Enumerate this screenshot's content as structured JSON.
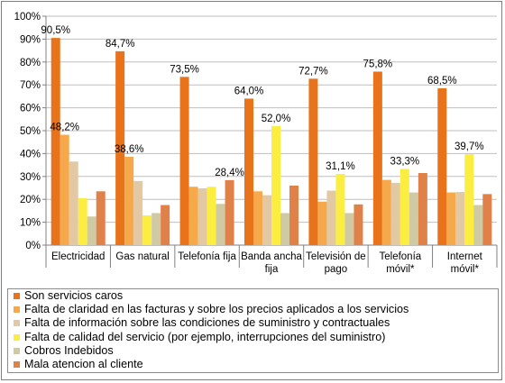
{
  "chart_data": {
    "type": "bar",
    "categories": [
      [
        "Electricidad"
      ],
      [
        "Gas natural"
      ],
      [
        "Telefonía fija"
      ],
      [
        "Banda ancha",
        "fija"
      ],
      [
        "Televisión de",
        "pago"
      ],
      [
        "Telefonía",
        "móvil*"
      ],
      [
        "Internet",
        "móvil*"
      ]
    ],
    "yticks": [
      "0%",
      "10%",
      "20%",
      "30%",
      "40%",
      "50%",
      "60%",
      "70%",
      "80%",
      "90%",
      "100%"
    ],
    "ylim": [
      0,
      100
    ],
    "grid": true,
    "legend_position": "bottom",
    "series": [
      {
        "name": "Son servicios caros",
        "color": "#e8731a",
        "values": [
          90.5,
          84.7,
          73.5,
          64.0,
          72.7,
          75.8,
          68.5
        ],
        "labels": [
          "90,5%",
          "84,7%",
          "73,5%",
          "64,0%",
          "72,7%",
          "75,8%",
          "68,5%"
        ]
      },
      {
        "name": "Falta de claridad en las facturas y sobre los precios aplicados a los servicios",
        "color": "#f5a94a",
        "values": [
          48.2,
          38.6,
          25.5,
          23.5,
          19.0,
          28.5,
          23.0
        ],
        "labels": [
          "48,2%",
          "38,6%",
          "",
          "",
          "",
          "",
          ""
        ]
      },
      {
        "name": "Falta de información sobre las condiciones de suministro y contractuales",
        "color": "#e3c9a3",
        "values": [
          36.5,
          28.0,
          24.8,
          21.8,
          23.8,
          27.2,
          23.2
        ],
        "labels": [
          "",
          "",
          "",
          "",
          "",
          "",
          ""
        ]
      },
      {
        "name": "Falta de calidad del servicio (por ejemplo, interrupciones del suministro)",
        "color": "#fbee40",
        "values": [
          20.5,
          13.0,
          25.5,
          52.0,
          31.1,
          33.3,
          39.7
        ],
        "labels": [
          "",
          "",
          "",
          "52,0%",
          "31,1%",
          "33,3%",
          "39,7%"
        ]
      },
      {
        "name": "Cobros Indebidos",
        "color": "#cfcaa3",
        "values": [
          12.5,
          14.0,
          18.0,
          14.0,
          14.0,
          23.0,
          17.5
        ],
        "labels": [
          "",
          "",
          "",
          "",
          "",
          "",
          ""
        ]
      },
      {
        "name": "Mala atencion al cliente",
        "color": "#e0814a",
        "values": [
          23.5,
          17.5,
          28.4,
          26.0,
          17.8,
          31.5,
          22.3
        ],
        "labels": [
          "",
          "",
          "28,4%",
          "",
          "",
          "",
          ""
        ]
      }
    ]
  }
}
